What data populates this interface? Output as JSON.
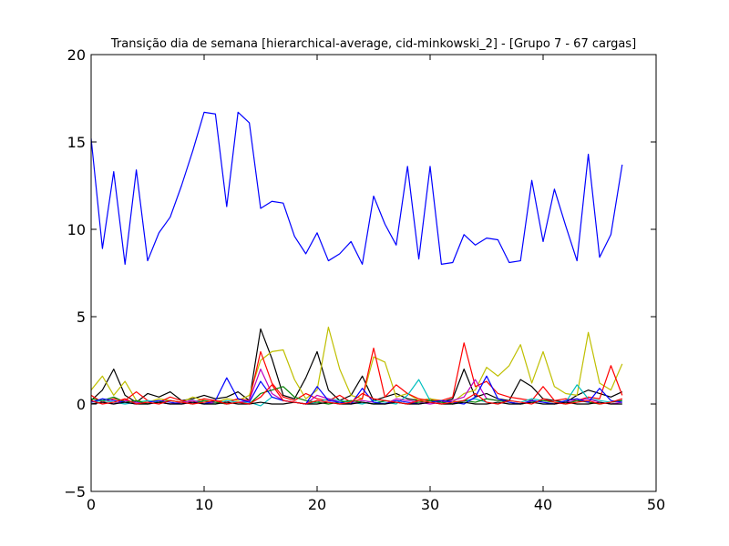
{
  "chart_data": {
    "type": "line",
    "title": "Transição dia de semana [hierarchical-average, cid-minkowski_2] - [Grupo 7 - 67 cargas]",
    "xlabel": "",
    "ylabel": "",
    "xlim": [
      0,
      50
    ],
    "ylim": [
      -5,
      20
    ],
    "xticks": [
      0,
      10,
      20,
      30,
      40,
      50
    ],
    "yticks": [
      -5,
      0,
      5,
      10,
      15,
      20
    ],
    "x_tick_labels": [
      "0",
      "10",
      "20",
      "30",
      "40",
      "50"
    ],
    "y_tick_labels": [
      "−5",
      "0",
      "5",
      "10",
      "15",
      "20"
    ],
    "grid": false,
    "x": [
      0,
      1,
      2,
      3,
      4,
      5,
      6,
      7,
      8,
      9,
      10,
      11,
      12,
      13,
      14,
      15,
      16,
      17,
      18,
      19,
      20,
      21,
      22,
      23,
      24,
      25,
      26,
      27,
      28,
      29,
      30,
      31,
      32,
      33,
      34,
      35,
      36,
      37,
      38,
      39,
      40,
      41,
      42,
      43,
      44,
      45,
      46,
      47
    ],
    "series": [
      {
        "color": "#0000ff",
        "values": [
          15.2,
          8.9,
          13.3,
          8.0,
          13.4,
          8.2,
          9.8,
          10.7,
          12.5,
          14.5,
          16.7,
          16.6,
          11.3,
          16.7,
          16.1,
          11.2,
          11.6,
          11.5,
          9.6,
          8.6,
          9.8,
          8.2,
          8.6,
          9.3,
          8.0,
          11.9,
          10.3,
          9.1,
          13.6,
          8.3,
          13.6,
          8.0,
          8.1,
          9.7,
          9.1,
          9.5,
          9.4,
          8.1,
          8.2,
          12.8,
          9.3,
          12.3,
          10.2,
          8.2,
          14.3,
          8.4,
          9.7,
          13.7
        ]
      },
      {
        "color": "#000000",
        "values": [
          0.2,
          0.8,
          2.0,
          0.5,
          0.1,
          0.6,
          0.4,
          0.7,
          0.2,
          0.3,
          0.5,
          0.3,
          0.4,
          0.7,
          0.2,
          4.3,
          2.6,
          0.5,
          0.3,
          1.5,
          3.0,
          0.8,
          0.2,
          0.5,
          1.6,
          0.2,
          0.4,
          0.6,
          0.3,
          0.2,
          0.3,
          0.1,
          0.3,
          2.0,
          0.4,
          0.6,
          0.3,
          0.2,
          1.4,
          1.0,
          0.3,
          0.2,
          0.1,
          0.5,
          0.8,
          0.6,
          0.4,
          0.7
        ]
      },
      {
        "color": "#bfbf00",
        "values": [
          0.8,
          1.6,
          0.5,
          1.3,
          0.2,
          0.1,
          0.3,
          0.2,
          0.1,
          0.4,
          0.2,
          0.1,
          0.3,
          0.2,
          0.5,
          2.5,
          3.0,
          3.1,
          1.4,
          0.3,
          0.8,
          4.4,
          2.0,
          0.5,
          0.3,
          2.7,
          2.4,
          0.4,
          0.6,
          0.2,
          0.3,
          0.2,
          0.1,
          0.6,
          0.8,
          2.1,
          1.6,
          2.2,
          3.4,
          1.2,
          3.0,
          1.0,
          0.6,
          0.5,
          4.1,
          1.2,
          0.8,
          2.3
        ]
      },
      {
        "color": "#ff0000",
        "values": [
          0.5,
          0.1,
          0.3,
          0.2,
          0.7,
          0.2,
          0.1,
          0.4,
          0.2,
          0.1,
          0.3,
          0.2,
          0.1,
          0.3,
          0.2,
          3.0,
          1.2,
          0.4,
          0.2,
          0.6,
          0.3,
          0.2,
          0.5,
          0.1,
          0.3,
          3.2,
          0.4,
          1.1,
          0.6,
          0.3,
          0.2,
          0.2,
          0.4,
          3.5,
          1.0,
          1.3,
          0.6,
          0.4,
          0.3,
          0.2,
          1.0,
          0.2,
          0.3,
          0.2,
          0.4,
          0.3,
          2.2,
          0.5
        ]
      },
      {
        "color": "#00bfbf",
        "values": [
          0.1,
          0.2,
          0.1,
          0.0,
          0.1,
          0.2,
          0.1,
          0.0,
          0.1,
          0.2,
          0.1,
          0.0,
          0.2,
          0.1,
          0.1,
          -0.1,
          0.4,
          0.2,
          0.1,
          0.0,
          0.1,
          0.3,
          0.2,
          0.1,
          0.0,
          0.2,
          0.1,
          0.0,
          0.5,
          1.4,
          0.2,
          0.1,
          0.0,
          0.2,
          0.3,
          0.1,
          0.0,
          0.2,
          0.1,
          0.3,
          0.2,
          0.1,
          0.1,
          1.1,
          0.3,
          0.2,
          0.1,
          0.2
        ]
      },
      {
        "color": "#bf00bf",
        "values": [
          0.0,
          0.1,
          0.0,
          0.2,
          0.1,
          0.0,
          0.1,
          0.0,
          0.1,
          0.2,
          0.0,
          0.1,
          0.0,
          0.1,
          0.2,
          2.0,
          0.6,
          0.2,
          0.1,
          0.0,
          0.5,
          0.3,
          0.1,
          0.0,
          0.2,
          0.1,
          0.0,
          0.3,
          0.2,
          0.1,
          0.0,
          0.1,
          0.2,
          0.4,
          1.4,
          0.3,
          0.2,
          0.1,
          0.0,
          0.2,
          0.1,
          0.0,
          0.1,
          0.2,
          0.3,
          0.1,
          0.0,
          0.1
        ]
      },
      {
        "color": "#008000",
        "values": [
          0.3,
          0.2,
          0.4,
          0.1,
          0.2,
          0.0,
          0.1,
          0.2,
          0.1,
          0.0,
          0.2,
          0.1,
          0.0,
          0.1,
          0.0,
          0.6,
          0.8,
          1.0,
          0.4,
          0.2,
          0.1,
          0.0,
          0.1,
          0.2,
          0.1,
          0.0,
          0.2,
          0.1,
          0.0,
          0.1,
          0.2,
          0.1,
          0.0,
          0.2,
          0.1,
          0.3,
          0.2,
          0.1,
          0.0,
          0.1,
          0.2,
          0.1,
          0.0,
          0.2,
          0.1,
          0.0,
          0.1,
          0.2
        ]
      },
      {
        "color": "#0000ff",
        "values": [
          0.1,
          0.3,
          0.2,
          0.1,
          0.0,
          0.1,
          0.2,
          0.1,
          0.0,
          0.1,
          0.0,
          0.2,
          1.5,
          0.3,
          0.1,
          1.3,
          0.4,
          0.2,
          0.1,
          0.0,
          1.0,
          0.2,
          0.1,
          0.0,
          0.9,
          0.1,
          0.0,
          0.2,
          0.1,
          0.0,
          0.1,
          0.2,
          0.1,
          0.0,
          0.4,
          1.6,
          0.3,
          0.1,
          0.0,
          0.2,
          0.1,
          0.0,
          0.2,
          0.3,
          0.1,
          0.9,
          0.2,
          0.1
        ]
      },
      {
        "color": "#000000",
        "values": [
          0.0,
          0.1,
          0.0,
          0.1,
          0.0,
          0.0,
          0.1,
          0.0,
          0.0,
          0.1,
          0.0,
          0.0,
          0.1,
          0.0,
          0.0,
          0.1,
          0.0,
          0.0,
          0.1,
          0.0,
          0.0,
          0.1,
          0.0,
          0.0,
          0.1,
          0.0,
          0.0,
          0.1,
          0.0,
          0.0,
          0.1,
          0.0,
          0.0,
          0.1,
          0.0,
          0.0,
          0.1,
          0.0,
          0.0,
          0.1,
          0.0,
          0.0,
          0.1,
          0.0,
          0.0,
          0.1,
          0.0,
          0.0
        ]
      },
      {
        "color": "#ff0000",
        "values": [
          0.2,
          0.0,
          0.1,
          0.3,
          0.0,
          0.1,
          0.0,
          0.2,
          0.1,
          0.0,
          0.1,
          0.2,
          0.0,
          0.1,
          0.0,
          0.4,
          1.1,
          0.2,
          0.1,
          0.0,
          0.2,
          0.1,
          0.0,
          0.1,
          0.6,
          0.3,
          0.2,
          0.1,
          0.0,
          0.2,
          0.1,
          0.0,
          0.1,
          0.2,
          0.6,
          0.1,
          0.0,
          0.2,
          0.1,
          0.0,
          0.3,
          0.1,
          0.0,
          0.1,
          0.2,
          0.0,
          0.1,
          0.3
        ]
      }
    ]
  }
}
